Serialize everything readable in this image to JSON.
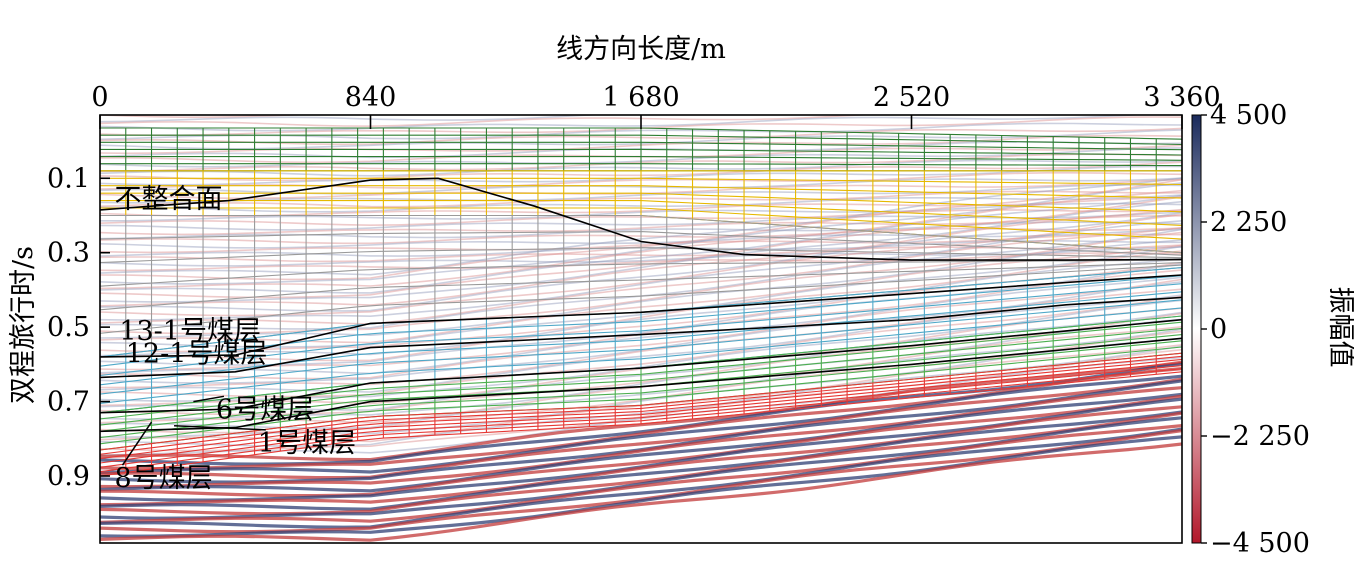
{
  "chart_data": {
    "type": "heatmap",
    "title": "",
    "xlabel": "线方向长度/m",
    "ylabel": "双程旅行时/s",
    "xlim": [
      0,
      3360
    ],
    "ylim": [
      1.08,
      -0.07
    ],
    "x_ticks": [
      0,
      840,
      1680,
      2520,
      3360
    ],
    "x_tick_labels": [
      "0",
      "840",
      "1 680",
      "2 520",
      "3 360"
    ],
    "x_axis_position": "top",
    "y_ticks": [
      0.1,
      0.3,
      0.5,
      0.7,
      0.9
    ],
    "y_tick_labels": [
      "0.1",
      "0.3",
      "0.5",
      "0.7",
      "0.9"
    ],
    "colorbar": {
      "label": "振幅值",
      "range": [
        -4500,
        4500
      ],
      "ticks": [
        4500,
        2250,
        0,
        -2250,
        -4500
      ],
      "tick_labels": [
        "4 500",
        "2 250",
        "0",
        "−2 250",
        "−4 500"
      ],
      "colors": [
        "#1a2a5c",
        "#ffffff",
        "#b2182b"
      ]
    },
    "horizons": [
      {
        "name": "不整合面",
        "color": "#000000",
        "x": [
          0,
          400,
          840,
          1050,
          1350,
          1680,
          2000,
          2520,
          3000,
          3360
        ],
        "y": [
          0.185,
          0.16,
          0.105,
          0.1,
          0.175,
          0.27,
          0.305,
          0.32,
          0.32,
          0.318
        ]
      },
      {
        "name": "13-1号煤层",
        "color": "#000000",
        "x": [
          0,
          420,
          840,
          1680,
          2520,
          3000,
          3360
        ],
        "y": [
          0.58,
          0.575,
          0.49,
          0.46,
          0.41,
          0.38,
          0.36
        ]
      },
      {
        "name": "12-1号煤层",
        "color": "#000000",
        "x": [
          0,
          420,
          840,
          1680,
          2520,
          3000,
          3360
        ],
        "y": [
          0.635,
          0.62,
          0.555,
          0.52,
          0.48,
          0.44,
          0.42
        ]
      },
      {
        "name": "6号煤层",
        "color": "#000000",
        "x": [
          0,
          420,
          840,
          1680,
          2520,
          3000,
          3360
        ],
        "y": [
          0.73,
          0.72,
          0.65,
          0.61,
          0.55,
          0.51,
          0.48
        ]
      },
      {
        "name": "1号煤层",
        "color": "#000000",
        "x": [
          0,
          420,
          840,
          1680,
          2520,
          3000,
          3360
        ],
        "y": [
          0.78,
          0.77,
          0.7,
          0.66,
          0.6,
          0.56,
          0.53
        ]
      }
    ],
    "grid_layers": [
      {
        "color": "#2e7d32",
        "top_x": [
          0,
          1680,
          3360
        ],
        "top_y": [
          -0.035,
          -0.035,
          -0.005
        ],
        "bottom_x": [
          0,
          1680,
          3360
        ],
        "bottom_y": [
          0.08,
          0.08,
          0.08
        ]
      },
      {
        "color": "#e6b800",
        "top_x": [
          0,
          1680,
          3360
        ],
        "top_y": [
          0.08,
          0.08,
          0.08
        ],
        "bottom_x": [
          0,
          1680,
          3360
        ],
        "bottom_y": [
          0.2,
          0.2,
          0.3
        ]
      },
      {
        "color": "#9a9a9a",
        "top_x": [
          0,
          1680,
          3360
        ],
        "top_y": [
          0.2,
          0.2,
          0.3
        ],
        "bottom_x": [
          0,
          840,
          1680,
          3360
        ],
        "bottom_y": [
          0.58,
          0.49,
          0.46,
          0.34
        ]
      },
      {
        "color": "#4fa8c8",
        "top_x": [
          0,
          840,
          1680,
          3360
        ],
        "top_y": [
          0.58,
          0.49,
          0.46,
          0.34
        ],
        "bottom_x": [
          0,
          840,
          1680,
          3360
        ],
        "bottom_y": [
          0.73,
          0.65,
          0.61,
          0.47
        ]
      },
      {
        "color": "#4caf50",
        "top_x": [
          0,
          840,
          1680,
          3360
        ],
        "top_y": [
          0.73,
          0.65,
          0.61,
          0.47
        ],
        "bottom_x": [
          0,
          840,
          1680,
          3360
        ],
        "bottom_y": [
          0.83,
          0.74,
          0.71,
          0.57
        ]
      },
      {
        "color": "#e53935",
        "top_x": [
          0,
          840,
          1680,
          3360
        ],
        "top_y": [
          0.83,
          0.74,
          0.71,
          0.57
        ],
        "bottom_x": [
          0,
          840,
          1680,
          3360
        ],
        "bottom_y": [
          0.9,
          0.8,
          0.76,
          0.62
        ]
      }
    ],
    "annotations": [
      {
        "text": "不整合面",
        "x": 45,
        "y": 0.18,
        "target_x": 45,
        "target_y": 0.18
      },
      {
        "text": "13-1号煤层",
        "x": 60,
        "y": 0.535,
        "target_x": 60,
        "target_y": 0.535
      },
      {
        "text": "12-1号煤层",
        "x": 80,
        "y": 0.595,
        "target_x": 80,
        "target_y": 0.595
      },
      {
        "text": "6号煤层",
        "x": 360,
        "y": 0.745,
        "target_x": 290,
        "target_y": 0.7
      },
      {
        "text": "1号煤层",
        "x": 490,
        "y": 0.835,
        "target_x": 230,
        "target_y": 0.765
      },
      {
        "text": "8号煤层",
        "x": 45,
        "y": 0.93,
        "target_x": 160,
        "target_y": 0.755
      }
    ]
  }
}
